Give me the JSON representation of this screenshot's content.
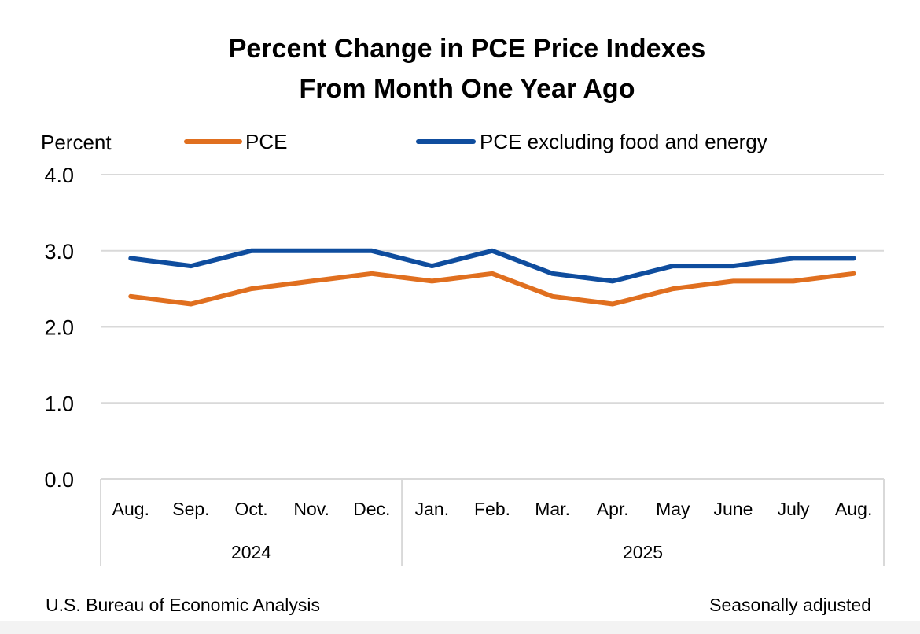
{
  "chart_data": {
    "type": "line",
    "title": [
      "Percent Change in PCE Price Indexes",
      "From Month One Year Ago"
    ],
    "ylabel": "Percent",
    "ylim": [
      0,
      4
    ],
    "yticks": [
      {
        "value": 0,
        "label": "0.0"
      },
      {
        "value": 1,
        "label": "1.0"
      },
      {
        "value": 2,
        "label": "2.0"
      },
      {
        "value": 3,
        "label": "3.0"
      },
      {
        "value": 4,
        "label": "4.0"
      }
    ],
    "categories": [
      "Aug.",
      "Sep.",
      "Oct.",
      "Nov.",
      "Dec.",
      "Jan.",
      "Feb.",
      "Mar.",
      "Apr.",
      "May",
      "June",
      "July",
      "Aug."
    ],
    "year_groups": [
      {
        "label": "2024",
        "count": 5
      },
      {
        "label": "2025",
        "count": 8
      }
    ],
    "grid": true,
    "legend_position": "top",
    "series": [
      {
        "name": "PCE",
        "color": "#e06f1f",
        "values": [
          2.4,
          2.3,
          2.5,
          2.6,
          2.7,
          2.6,
          2.7,
          2.4,
          2.3,
          2.5,
          2.6,
          2.6,
          2.7
        ]
      },
      {
        "name": "PCE excluding food and energy",
        "color": "#0f4d9e",
        "values": [
          2.9,
          2.8,
          3.0,
          3.0,
          3.0,
          2.8,
          3.0,
          2.7,
          2.6,
          2.8,
          2.8,
          2.9,
          2.9
        ]
      }
    ]
  },
  "footer": {
    "source": "U.S. Bureau of Economic Analysis",
    "note": "Seasonally adjusted"
  }
}
